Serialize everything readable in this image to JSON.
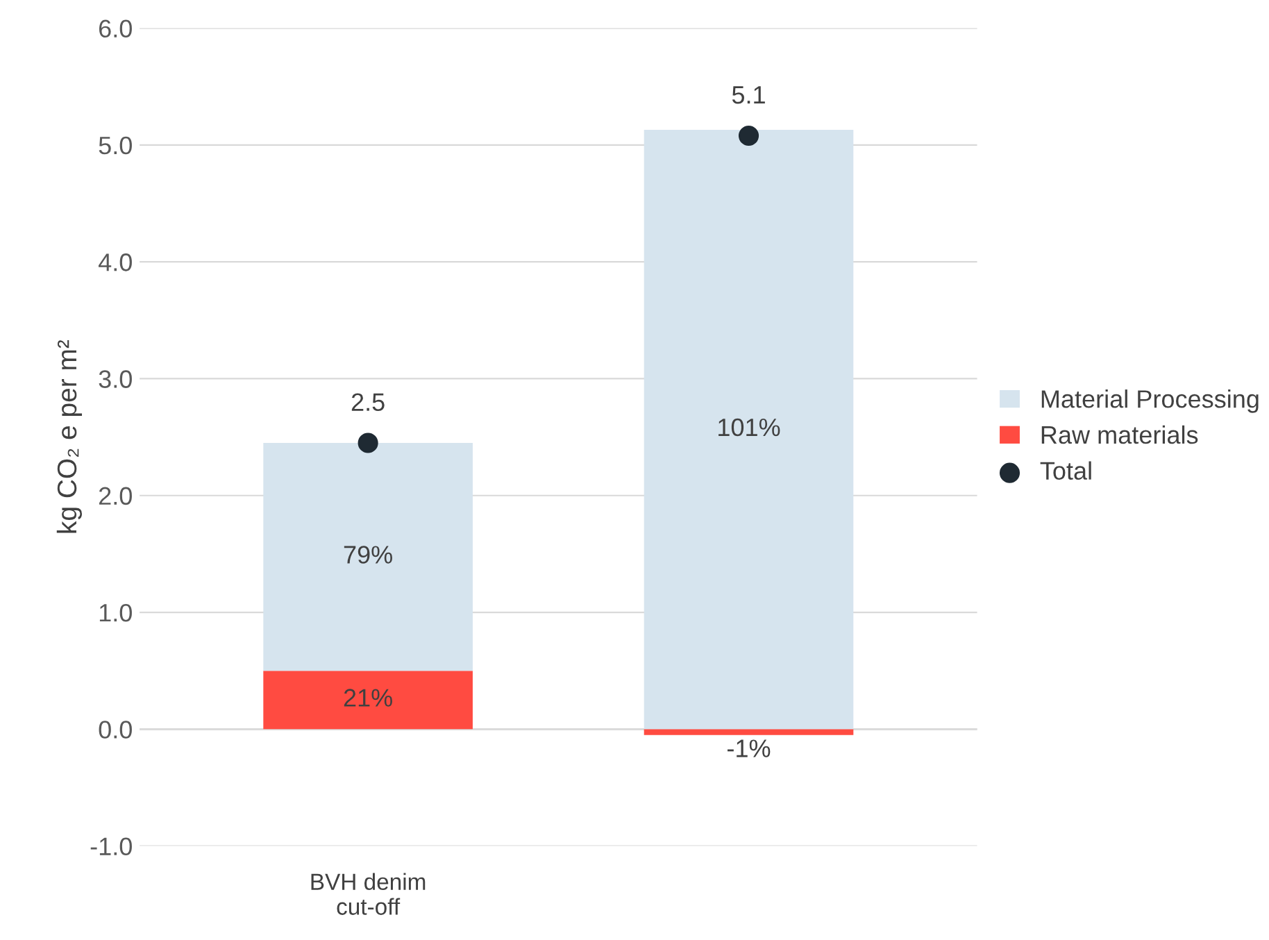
{
  "chart_data": {
    "type": "bar",
    "stacked": true,
    "ylabel": "kg CO₂ e per m²",
    "categories": [
      "BVH denim\ncut-off",
      null
    ],
    "series": [
      {
        "name": "Raw materials",
        "color": "#ff4b41",
        "values": [
          0.5,
          -0.05
        ]
      },
      {
        "name": "Material Processing",
        "color": "#d6e4ee",
        "values": [
          1.95,
          5.13
        ]
      },
      {
        "name": "Total",
        "type": "scatter",
        "color": "#1f2a33",
        "values": [
          2.45,
          5.08
        ],
        "value_labels": [
          "2.5",
          "5.1"
        ]
      }
    ],
    "ylim": [
      -1.0,
      6.0
    ],
    "yticks": [
      {
        "value": -1,
        "label": "-1.0"
      },
      {
        "value": 0,
        "label": "0.0"
      },
      {
        "value": 1,
        "label": "1.0"
      },
      {
        "value": 2,
        "label": "2.0"
      },
      {
        "value": 3,
        "label": "3.0"
      },
      {
        "value": 4,
        "label": "4.0"
      },
      {
        "value": 5,
        "label": "5.0"
      },
      {
        "value": 6,
        "label": "6.0"
      }
    ],
    "annotations": [
      "21%",
      "-1%",
      "79%",
      "101%"
    ],
    "grid": "y",
    "legend": "right",
    "marker": "circle"
  }
}
